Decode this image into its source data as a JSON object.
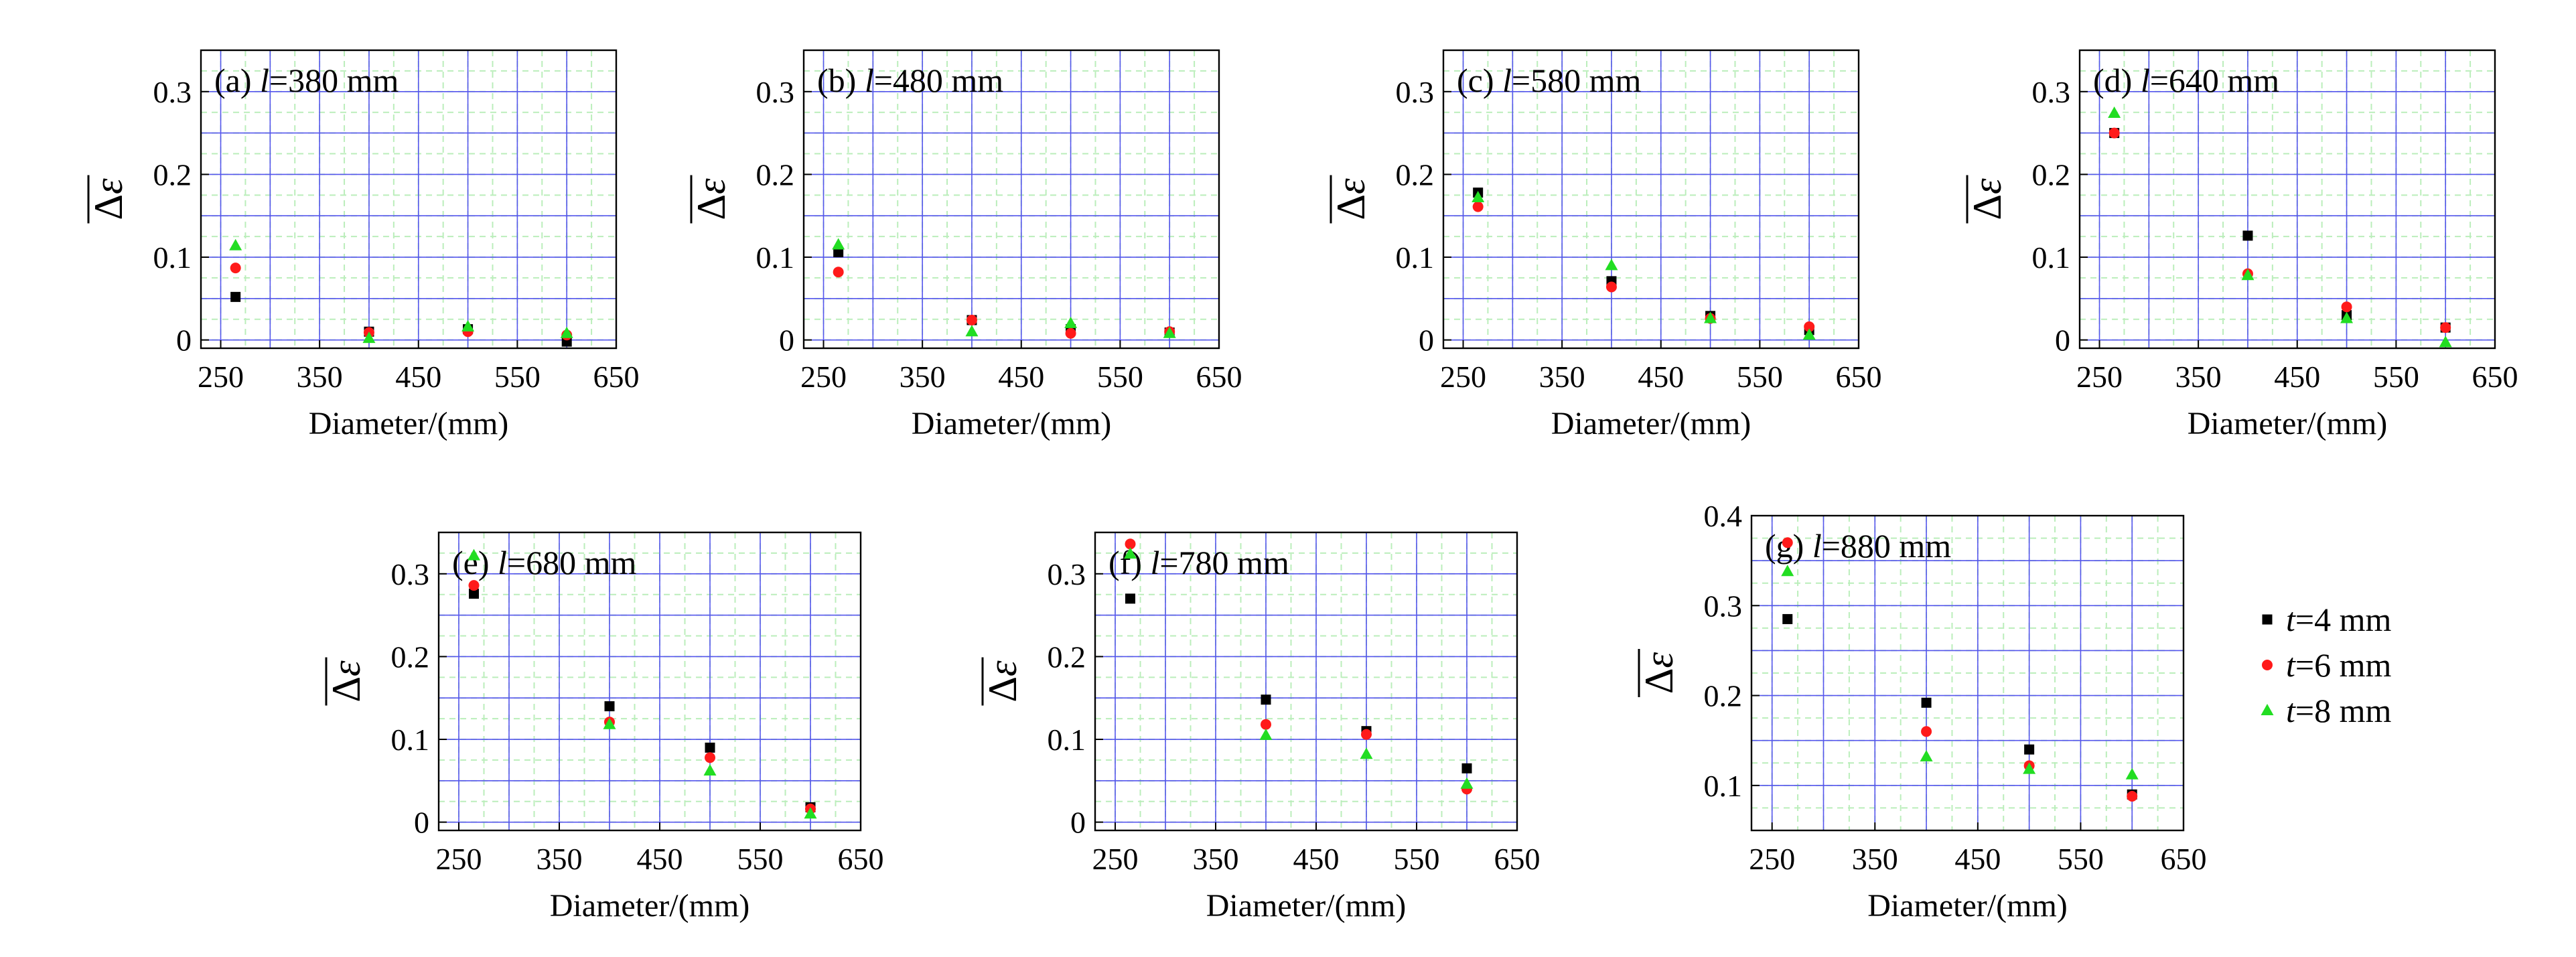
{
  "series_styles": [
    {
      "name": "t=4 mm",
      "var": "t",
      "rest": "=4 mm",
      "shape": "square",
      "color": "#000000"
    },
    {
      "name": "t=6 mm",
      "var": "t",
      "rest": "=6 mm",
      "shape": "circle",
      "color": "#ff1a1a"
    },
    {
      "name": "t=8 mm",
      "var": "t",
      "rest": "=8 mm",
      "shape": "triangle",
      "color": "#22dd22"
    }
  ],
  "colors": {
    "major_grid": "#5555ee",
    "minor_grid": "#bbeebb",
    "axis": "#000000"
  },
  "chart_data": [
    {
      "id": "a",
      "type": "scatter",
      "title_prefix": "(a) ",
      "title_var": "l",
      "title_rest": "=380 mm",
      "xlabel": "Diameter/(mm)",
      "ylabel": "Δε (mean)",
      "xlim": [
        230,
        650
      ],
      "ylim": [
        -0.01,
        0.35
      ],
      "xticks": [
        250,
        350,
        450,
        550,
        650
      ],
      "yticks": [
        0,
        0.1,
        0.2,
        0.3
      ],
      "xtick_labels": [
        "250",
        "350",
        "450",
        "550",
        "650"
      ],
      "ytick_labels": [
        "0",
        "0.1",
        "0.2",
        "0.3"
      ],
      "x": [
        265,
        400,
        500,
        600
      ],
      "series": [
        {
          "name": "t=4 mm",
          "values": [
            0.052,
            0.01,
            0.013,
            -0.002
          ]
        },
        {
          "name": "t=6 mm",
          "values": [
            0.087,
            0.009,
            0.01,
            0.006
          ]
        },
        {
          "name": "t=8 mm",
          "values": [
            0.114,
            0.002,
            0.016,
            0.008
          ]
        }
      ]
    },
    {
      "id": "b",
      "type": "scatter",
      "title_prefix": "(b) ",
      "title_var": "l",
      "title_rest": "=480 mm",
      "xlabel": "Diameter/(mm)",
      "ylabel": "Δε (mean)",
      "xlim": [
        230,
        650
      ],
      "ylim": [
        -0.01,
        0.35
      ],
      "xticks": [
        250,
        350,
        450,
        550,
        650
      ],
      "yticks": [
        0,
        0.1,
        0.2,
        0.3
      ],
      "xtick_labels": [
        "250",
        "350",
        "450",
        "550",
        "650"
      ],
      "ytick_labels": [
        "0",
        "0.1",
        "0.2",
        "0.3"
      ],
      "x": [
        265,
        400,
        500,
        600
      ],
      "series": [
        {
          "name": "t=4 mm",
          "values": [
            0.106,
            0.024,
            0.013,
            0.009
          ]
        },
        {
          "name": "t=6 mm",
          "values": [
            0.082,
            0.024,
            0.008,
            0.01
          ]
        },
        {
          "name": "t=8 mm",
          "values": [
            0.115,
            0.01,
            0.02,
            0.008
          ]
        }
      ]
    },
    {
      "id": "c",
      "type": "scatter",
      "title_prefix": "(c) ",
      "title_var": "l",
      "title_rest": "=580 mm",
      "xlabel": "Diameter/(mm)",
      "ylabel": "Δε (mean)",
      "xlim": [
        230,
        650
      ],
      "ylim": [
        -0.01,
        0.35
      ],
      "xticks": [
        250,
        350,
        450,
        550,
        650
      ],
      "yticks": [
        0,
        0.1,
        0.2,
        0.3
      ],
      "xtick_labels": [
        "250",
        "350",
        "450",
        "550",
        "650"
      ],
      "ytick_labels": [
        "0",
        "0.1",
        "0.2",
        "0.3"
      ],
      "x": [
        265,
        400,
        500,
        600
      ],
      "series": [
        {
          "name": "t=4 mm",
          "values": [
            0.178,
            0.071,
            0.029,
            0.012
          ]
        },
        {
          "name": "t=6 mm",
          "values": [
            0.161,
            0.064,
            0.026,
            0.016
          ]
        },
        {
          "name": "t=8 mm",
          "values": [
            0.172,
            0.09,
            0.026,
            0.006
          ]
        }
      ]
    },
    {
      "id": "d",
      "type": "scatter",
      "title_prefix": "(d) ",
      "title_var": "l",
      "title_rest": "=640 mm",
      "xlabel": "Diameter/(mm)",
      "ylabel": "Δε (mean)",
      "xlim": [
        230,
        650
      ],
      "ylim": [
        -0.01,
        0.35
      ],
      "xticks": [
        250,
        350,
        450,
        550,
        650
      ],
      "yticks": [
        0,
        0.1,
        0.2,
        0.3
      ],
      "xtick_labels": [
        "250",
        "350",
        "450",
        "550",
        "650"
      ],
      "ytick_labels": [
        "0",
        "0.1",
        "0.2",
        "0.3"
      ],
      "x": [
        265,
        400,
        500,
        600
      ],
      "series": [
        {
          "name": "t=4 mm",
          "values": [
            0.25,
            0.126,
            0.03,
            0.015
          ]
        },
        {
          "name": "t=6 mm",
          "values": [
            0.25,
            0.08,
            0.04,
            0.015
          ]
        },
        {
          "name": "t=8 mm",
          "values": [
            0.274,
            0.078,
            0.026,
            -0.003
          ]
        }
      ]
    },
    {
      "id": "e",
      "type": "scatter",
      "title_prefix": "(e) ",
      "title_var": "l",
      "title_rest": "=680 mm",
      "xlabel": "Diameter/(mm)",
      "ylabel": "Δε (mean)",
      "xlim": [
        230,
        650
      ],
      "ylim": [
        -0.01,
        0.35
      ],
      "xticks": [
        250,
        350,
        450,
        550,
        650
      ],
      "yticks": [
        0,
        0.1,
        0.2,
        0.3
      ],
      "xtick_labels": [
        "250",
        "350",
        "450",
        "550",
        "650"
      ],
      "ytick_labels": [
        "0",
        "0.1",
        "0.2",
        "0.3"
      ],
      "x": [
        265,
        400,
        500,
        600
      ],
      "series": [
        {
          "name": "t=4 mm",
          "values": [
            0.276,
            0.14,
            0.09,
            0.018
          ]
        },
        {
          "name": "t=6 mm",
          "values": [
            0.286,
            0.121,
            0.078,
            0.016
          ]
        },
        {
          "name": "t=8 mm",
          "values": [
            0.322,
            0.118,
            0.062,
            0.01
          ]
        }
      ]
    },
    {
      "id": "f",
      "type": "scatter",
      "title_prefix": "(f) ",
      "title_var": "l",
      "title_rest": "=780 mm",
      "xlabel": "Diameter/(mm)",
      "ylabel": "Δε (mean)",
      "xlim": [
        230,
        650
      ],
      "ylim": [
        -0.01,
        0.35
      ],
      "xticks": [
        250,
        350,
        450,
        550,
        650
      ],
      "yticks": [
        0,
        0.1,
        0.2,
        0.3
      ],
      "xtick_labels": [
        "250",
        "350",
        "450",
        "550",
        "650"
      ],
      "ytick_labels": [
        "0",
        "0.1",
        "0.2",
        "0.3"
      ],
      "x": [
        265,
        400,
        500,
        600
      ],
      "series": [
        {
          "name": "t=4 mm",
          "values": [
            0.27,
            0.148,
            0.11,
            0.065
          ]
        },
        {
          "name": "t=6 mm",
          "values": [
            0.336,
            0.118,
            0.106,
            0.04
          ]
        },
        {
          "name": "t=8 mm",
          "values": [
            0.324,
            0.105,
            0.082,
            0.046
          ]
        }
      ]
    },
    {
      "id": "g",
      "type": "scatter",
      "title_prefix": "(g) ",
      "title_var": "l",
      "title_rest": "=880 mm",
      "xlabel": "Diameter/(mm)",
      "ylabel": "Δε (mean)",
      "xlim": [
        230,
        650
      ],
      "ylim": [
        0.05,
        0.4
      ],
      "xticks": [
        250,
        350,
        450,
        550,
        650
      ],
      "yticks": [
        0.1,
        0.2,
        0.3,
        0.4
      ],
      "xtick_labels": [
        "250",
        "350",
        "450",
        "550",
        "650"
      ],
      "ytick_labels": [
        "0.1",
        "0.2",
        "0.3",
        "0.4"
      ],
      "x": [
        265,
        400,
        500,
        600
      ],
      "series": [
        {
          "name": "t=4 mm",
          "values": [
            0.285,
            0.192,
            0.14,
            0.09
          ]
        },
        {
          "name": "t=6 mm",
          "values": [
            0.37,
            0.16,
            0.122,
            0.088
          ]
        },
        {
          "name": "t=8 mm",
          "values": [
            0.338,
            0.132,
            0.118,
            0.112
          ]
        }
      ]
    }
  ]
}
